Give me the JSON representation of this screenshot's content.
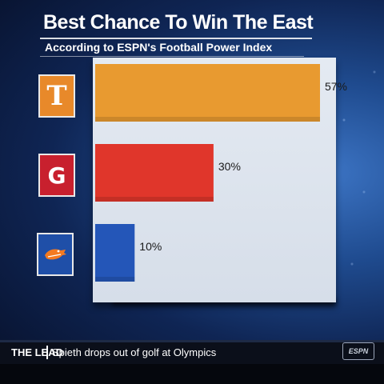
{
  "header": {
    "title": "Best Chance To Win The East",
    "subtitle": "According to ESPN's Football Power Index"
  },
  "chart_data": {
    "type": "bar",
    "orientation": "horizontal",
    "title": "Best Chance To Win The East",
    "subtitle": "According to ESPN's Football Power Index",
    "categories": [
      "T",
      "G",
      "F"
    ],
    "values": [
      57,
      30,
      10
    ],
    "data_labels": [
      "57%",
      "30%",
      "10%"
    ],
    "bar_colors": [
      "#e89a30",
      "#e0362b",
      "#2456b8"
    ],
    "xlim": [
      0,
      71
    ],
    "grid": false,
    "legend": "none"
  },
  "logos": [
    {
      "icon": "tennessee-t-logo-icon",
      "letter": "T",
      "bg": "#e8892a",
      "fg": "#ffffff"
    },
    {
      "icon": "georgia-g-logo-icon",
      "letter": "G",
      "bg": "#c8202e",
      "fg": "#ffffff"
    },
    {
      "icon": "florida-gator-logo-icon",
      "letter": "",
      "bg": "#1f4fa8",
      "fg": "#f47a20"
    }
  ],
  "ticker": {
    "label": "THE LEAD",
    "text": "Spieth drops out of golf at Olympics",
    "network_icon": "espn-network-logo-icon"
  }
}
